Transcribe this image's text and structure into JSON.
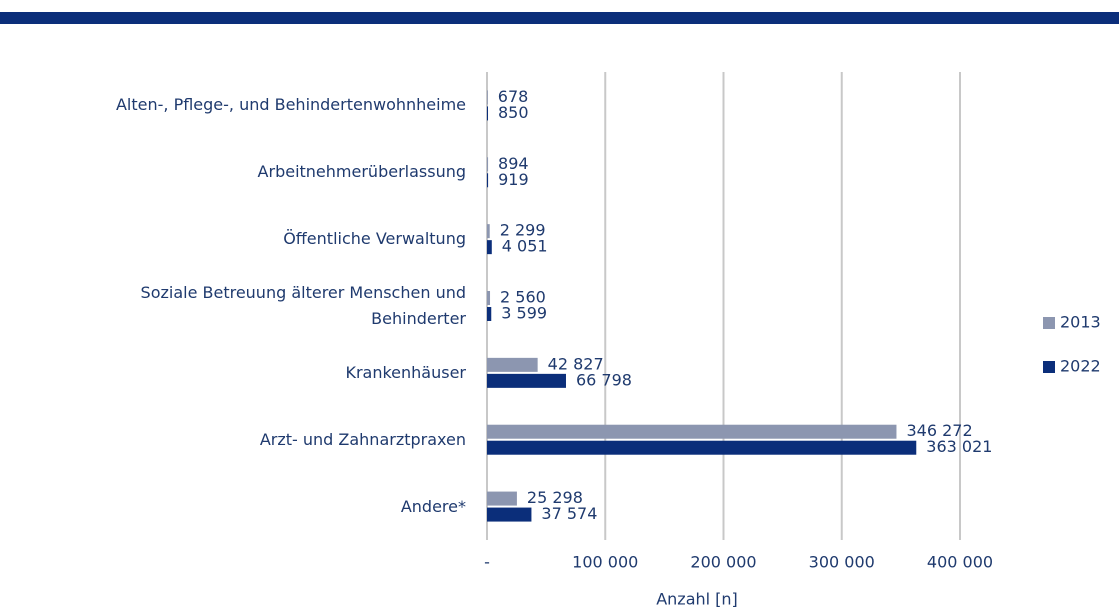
{
  "chart_data": {
    "type": "bar",
    "orientation": "horizontal",
    "categories": [
      "Alten-, Pflege-, und Behindertenwohnheime",
      "Arbeitnehmerüberlassung",
      "Öffentliche Verwaltung",
      "Soziale Betreuung älterer Menschen und\nBehinderter",
      "Krankenhäuser",
      "Arzt- und Zahnarztpraxen",
      "Andere*"
    ],
    "series": [
      {
        "name": "2013",
        "color": "#8c96b0",
        "values": [
          678,
          894,
          2299,
          2560,
          42827,
          346272,
          25298
        ],
        "value_labels": [
          "678",
          "894",
          "2 299",
          "2 560",
          "42 827",
          "346 272",
          "25 298"
        ]
      },
      {
        "name": "2022",
        "color": "#0b2e7a",
        "values": [
          850,
          919,
          4051,
          3599,
          66798,
          363021,
          37574
        ],
        "value_labels": [
          "850",
          "919",
          "4 051",
          "3 599",
          "66 798",
          "363 021",
          "37 574"
        ]
      }
    ],
    "xlabel": "Anzahl [n]",
    "xlim": [
      0,
      400000
    ],
    "xticks": [
      {
        "value": 0,
        "label": "-"
      },
      {
        "value": 100000,
        "label": "100 000"
      },
      {
        "value": 200000,
        "label": "200 000"
      },
      {
        "value": 300000,
        "label": "300 000"
      },
      {
        "value": 400000,
        "label": "400 000"
      }
    ],
    "grid": true,
    "legend": "right"
  }
}
